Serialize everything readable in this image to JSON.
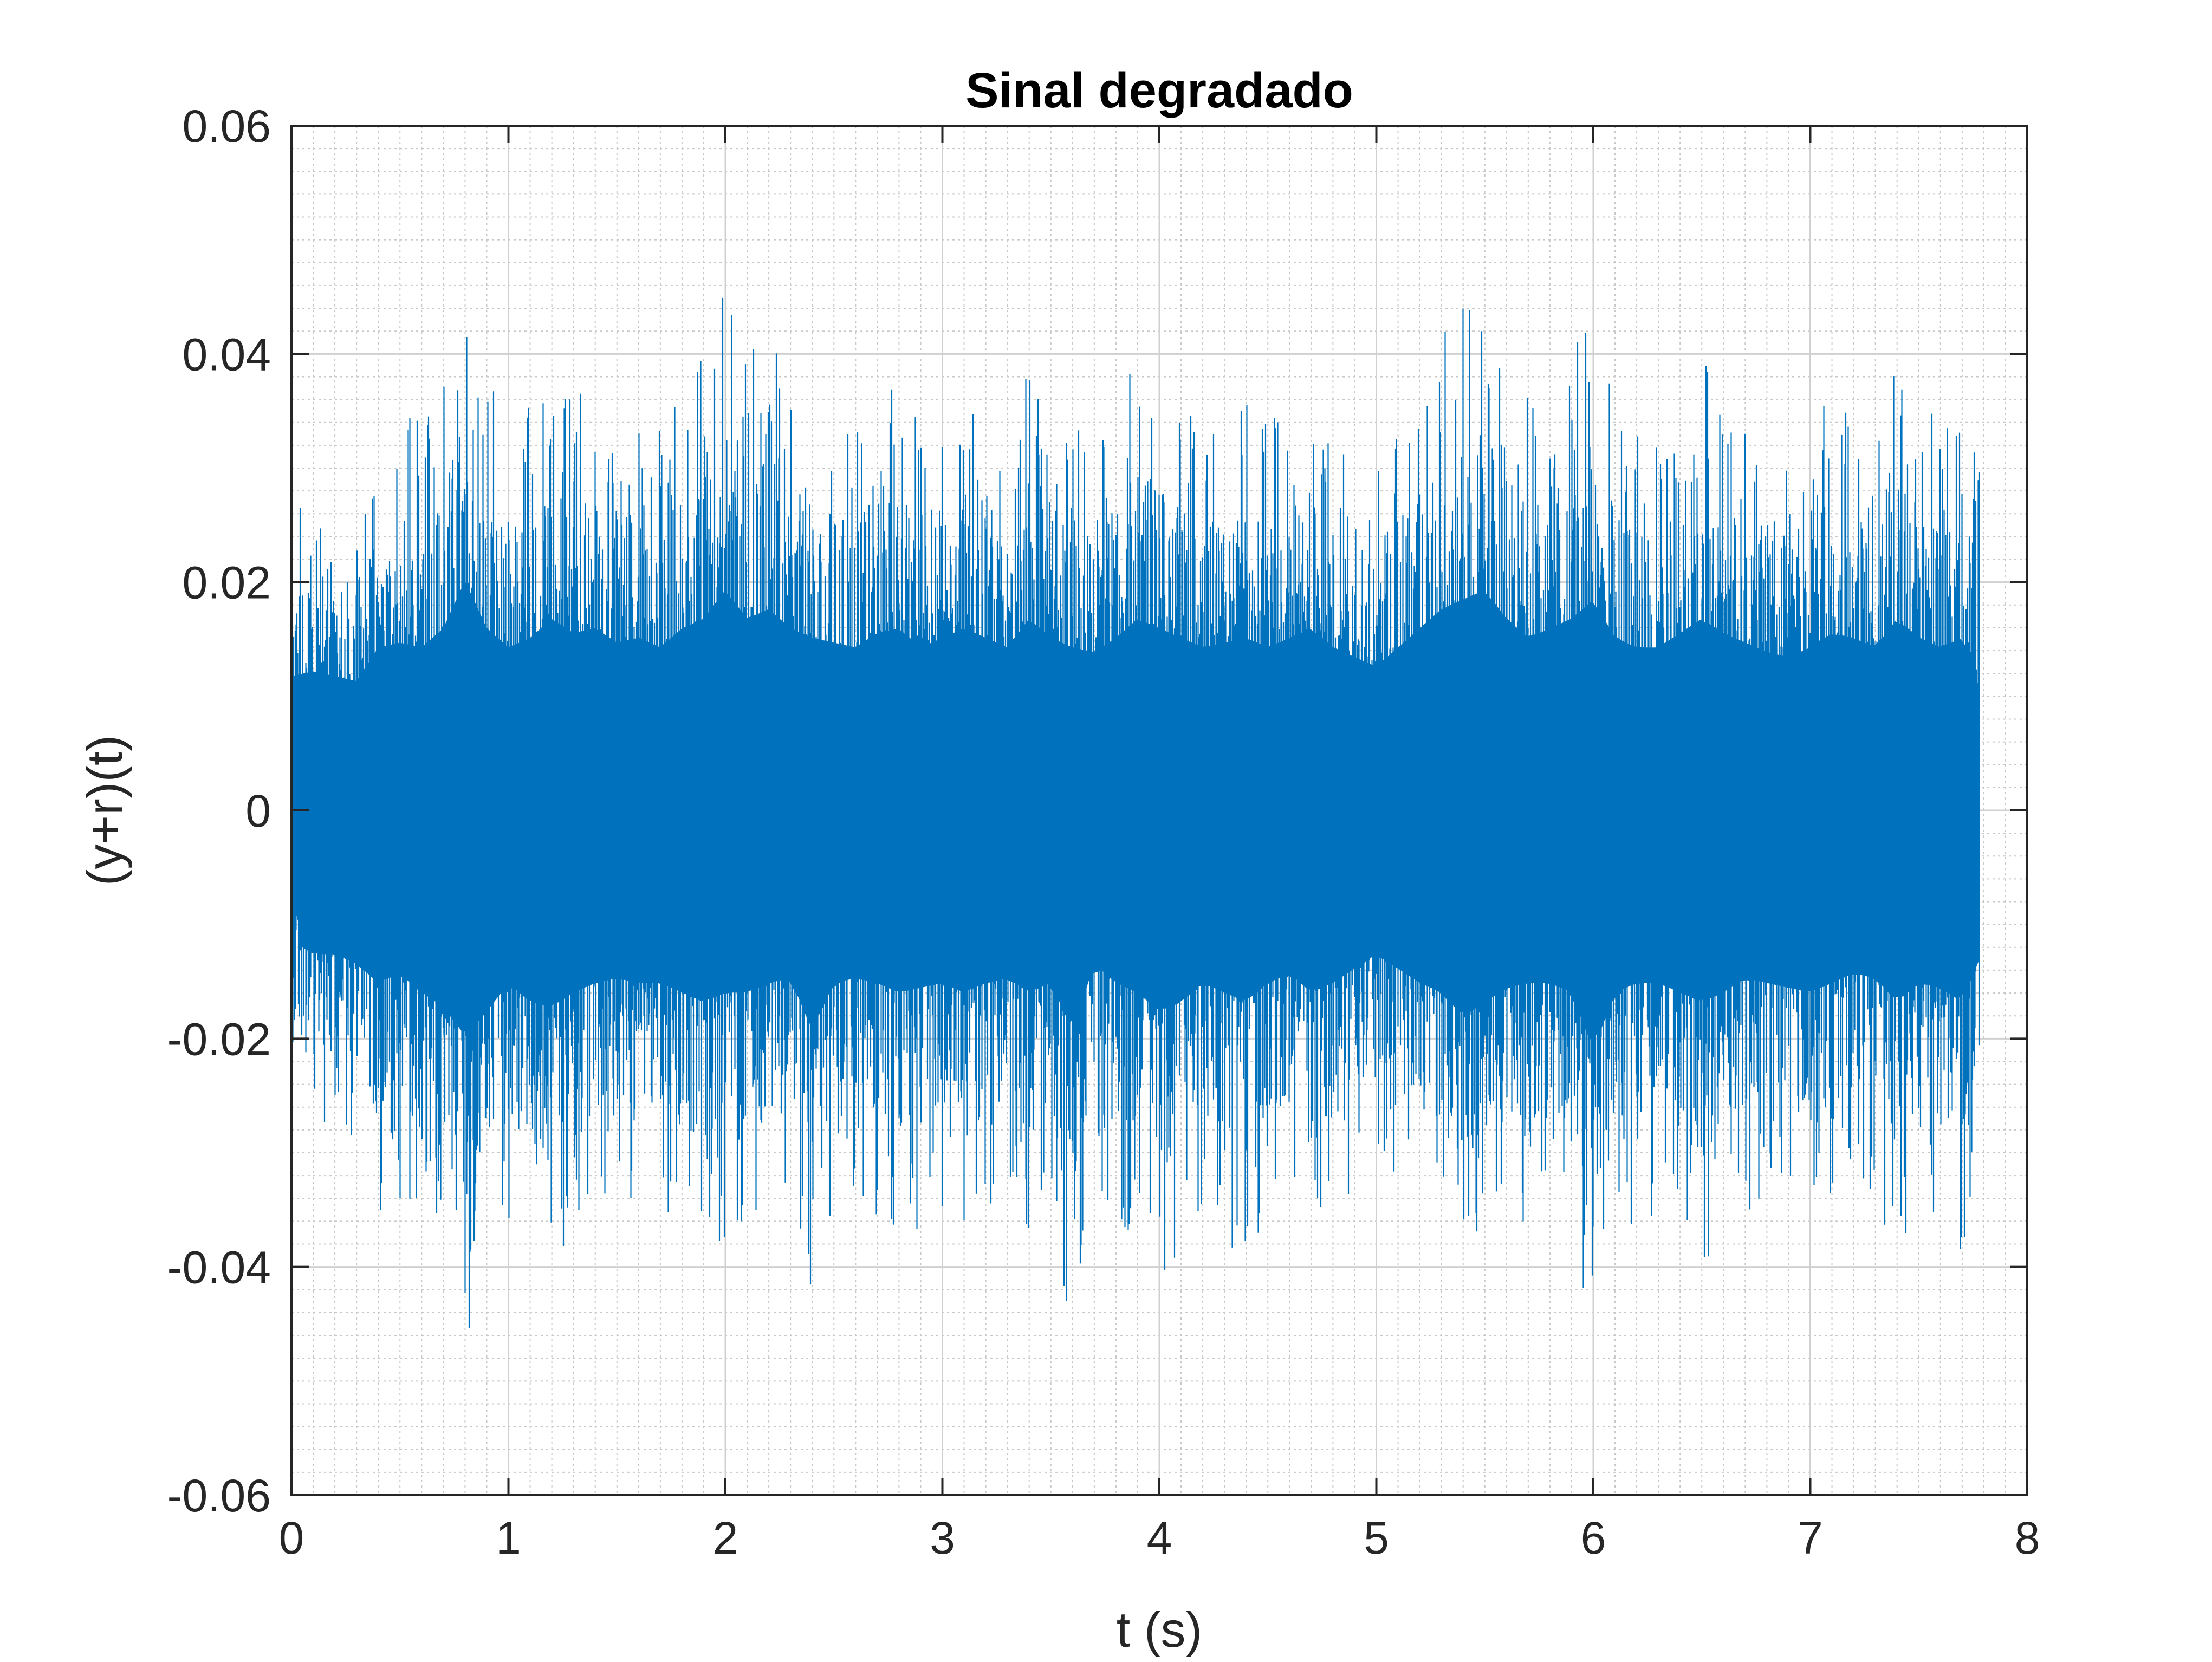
{
  "chart_data": {
    "type": "line",
    "title": "Sinal degradado",
    "xlabel": "t (s)",
    "ylabel": "(y+r)(t)",
    "xlim": [
      0,
      8
    ],
    "ylim": [
      -0.06,
      0.06
    ],
    "x_ticks": [
      "0",
      "1",
      "2",
      "3",
      "4",
      "5",
      "6",
      "7",
      "8"
    ],
    "y_ticks": [
      "-0.06",
      "-0.04",
      "-0.02",
      "0",
      "0.02",
      "0.04",
      "0.06"
    ],
    "grid": "on",
    "minor_grid": "on",
    "legend": "none",
    "series_color": "#0072BD",
    "t_end": 7.78,
    "envelope": {
      "t": [
        0,
        0.1,
        0.2,
        0.3,
        0.4,
        0.5,
        0.6,
        0.7,
        0.8,
        0.9,
        1.0,
        1.1,
        1.2,
        1.3,
        1.4,
        1.5,
        1.6,
        1.7,
        1.8,
        1.9,
        2.0,
        2.1,
        2.2,
        2.3,
        2.4,
        2.5,
        2.6,
        2.7,
        2.8,
        2.9,
        3.0,
        3.1,
        3.2,
        3.3,
        3.4,
        3.5,
        3.6,
        3.7,
        3.8,
        3.9,
        4.0,
        4.1,
        4.2,
        4.3,
        4.4,
        4.5,
        4.6,
        4.7,
        4.8,
        4.9,
        5.0,
        5.1,
        5.2,
        5.3,
        5.4,
        5.5,
        5.6,
        5.7,
        5.8,
        5.9,
        6.0,
        6.1,
        6.2,
        6.3,
        6.4,
        6.5,
        6.6,
        6.7,
        6.8,
        6.9,
        7.0,
        7.1,
        7.2,
        7.3,
        7.4,
        7.5,
        7.6,
        7.7,
        7.78
      ],
      "max": [
        0.028,
        0.029,
        0.028,
        0.027,
        0.034,
        0.035,
        0.034,
        0.038,
        0.048,
        0.038,
        0.034,
        0.036,
        0.04,
        0.037,
        0.038,
        0.035,
        0.036,
        0.034,
        0.038,
        0.04,
        0.046,
        0.04,
        0.042,
        0.038,
        0.036,
        0.035,
        0.034,
        0.037,
        0.038,
        0.034,
        0.036,
        0.038,
        0.036,
        0.034,
        0.04,
        0.036,
        0.034,
        0.033,
        0.036,
        0.04,
        0.038,
        0.036,
        0.034,
        0.035,
        0.036,
        0.034,
        0.036,
        0.038,
        0.034,
        0.032,
        0.03,
        0.034,
        0.038,
        0.042,
        0.044,
        0.046,
        0.04,
        0.036,
        0.038,
        0.04,
        0.044,
        0.036,
        0.034,
        0.034,
        0.037,
        0.04,
        0.037,
        0.035,
        0.033,
        0.032,
        0.034,
        0.037,
        0.036,
        0.034,
        0.04,
        0.036,
        0.034,
        0.036,
        0.03
      ],
      "min": [
        -0.027,
        -0.03,
        -0.03,
        -0.032,
        -0.036,
        -0.034,
        -0.038,
        -0.041,
        -0.047,
        -0.042,
        -0.036,
        -0.04,
        -0.041,
        -0.038,
        -0.036,
        -0.035,
        -0.036,
        -0.036,
        -0.038,
        -0.04,
        -0.038,
        -0.038,
        -0.036,
        -0.035,
        -0.046,
        -0.036,
        -0.035,
        -0.036,
        -0.038,
        -0.037,
        -0.036,
        -0.038,
        -0.036,
        -0.035,
        -0.038,
        -0.036,
        -0.046,
        -0.032,
        -0.036,
        -0.038,
        -0.042,
        -0.04,
        -0.036,
        -0.038,
        -0.04,
        -0.036,
        -0.034,
        -0.038,
        -0.036,
        -0.033,
        -0.03,
        -0.033,
        -0.036,
        -0.038,
        -0.043,
        -0.04,
        -0.037,
        -0.036,
        -0.036,
        -0.038,
        -0.05,
        -0.038,
        -0.036,
        -0.036,
        -0.038,
        -0.04,
        -0.038,
        -0.035,
        -0.036,
        -0.037,
        -0.038,
        -0.036,
        -0.034,
        -0.035,
        -0.04,
        -0.036,
        -0.037,
        -0.04,
        -0.031
      ]
    }
  }
}
